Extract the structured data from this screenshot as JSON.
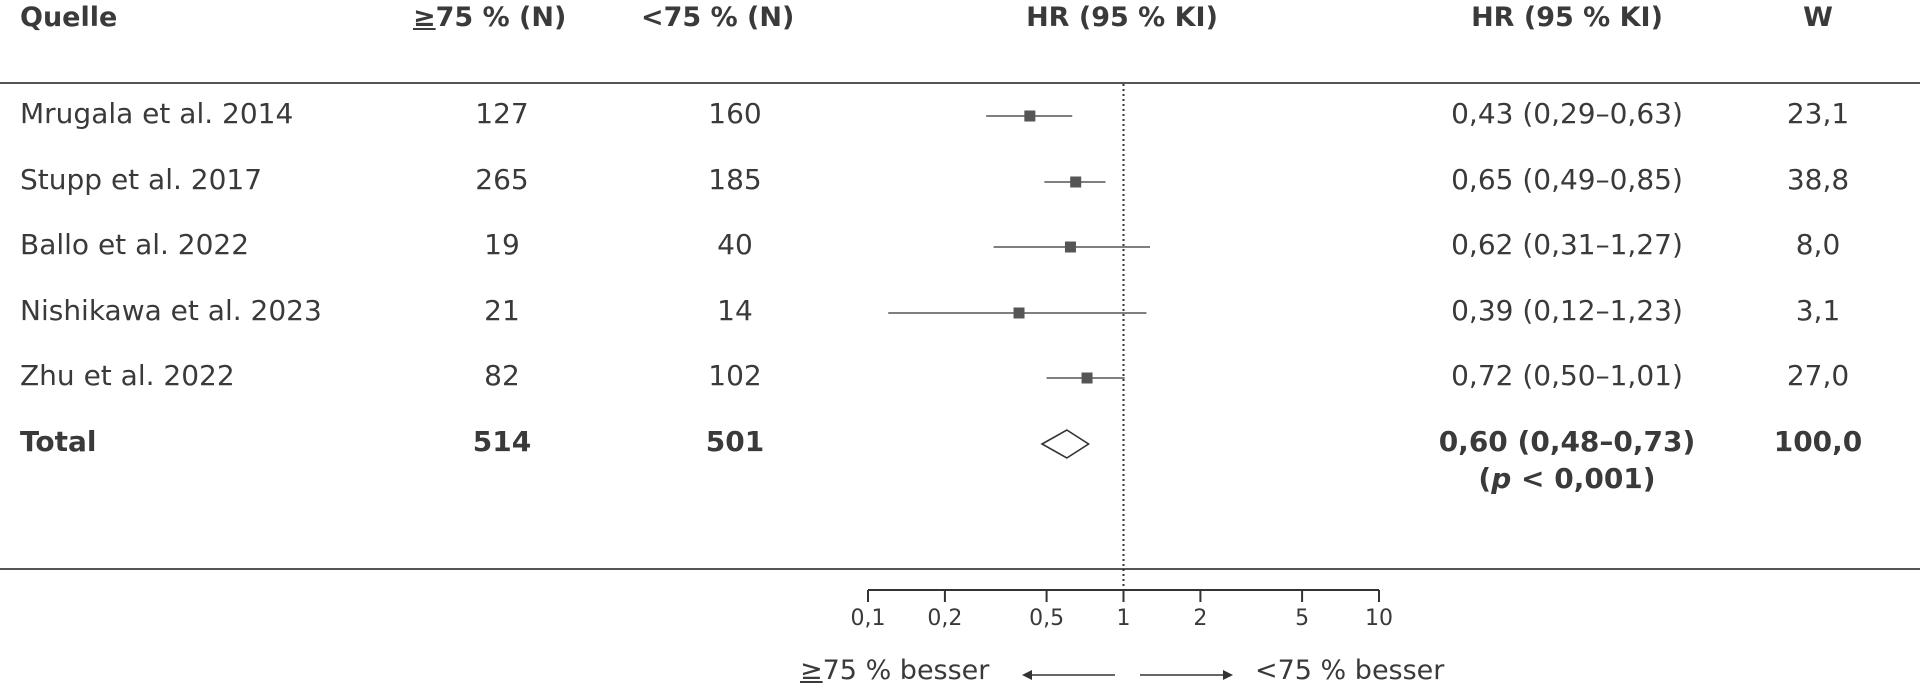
{
  "headers": {
    "source": "Quelle",
    "n_high_prefix": "≥",
    "n_high": "75 % (N)",
    "n_low": "<75 % (N)",
    "hr_plot": "HR (95 % KI)",
    "hr_value": "HR (95 % KI)",
    "weight": "W"
  },
  "rows": [
    {
      "source": "Mrugala et al. 2014",
      "n_high": "127",
      "n_low": "160",
      "hr_text": "0,43 (0,29–0,63)",
      "weight": "23,1"
    },
    {
      "source": "Stupp et al. 2017",
      "n_high": "265",
      "n_low": "185",
      "hr_text": "0,65 (0,49–0,85)",
      "weight": "38,8"
    },
    {
      "source": "Ballo et al. 2022",
      "n_high": "19",
      "n_low": "40",
      "hr_text": "0,62 (0,31–1,27)",
      "weight": "8,0"
    },
    {
      "source": "Nishikawa et al. 2023",
      "n_high": "21",
      "n_low": "14",
      "hr_text": "0,39 (0,12–1,23)",
      "weight": "3,1"
    },
    {
      "source": "Zhu et al. 2022",
      "n_high": "82",
      "n_low": "102",
      "hr_text": "0,72 (0,50–1,01)",
      "weight": "27,0"
    }
  ],
  "total": {
    "source": "Total",
    "n_high": "514",
    "n_low": "501",
    "hr_text": "0,60 (0,48–0,73)",
    "p_open": "(",
    "p_letter": "p",
    "p_rest": " < 0,001)",
    "weight": "100,0"
  },
  "axis": {
    "ticks": [
      "0,1",
      "0,2",
      "0,5",
      "1",
      "2",
      "5",
      "10"
    ],
    "left_prefix": "≥",
    "left_label": "75 % besser",
    "right_label": "<75 % besser"
  },
  "colors": {
    "text": "#3a3a3a",
    "marker": "#555555",
    "line": "#555555"
  },
  "chart_data": {
    "type": "scatter",
    "subtype": "forest-plot",
    "scale": "log",
    "xlim": [
      0.1,
      10
    ],
    "reference_line": 1,
    "ticks": [
      0.1,
      0.2,
      0.5,
      1,
      2,
      5,
      10
    ],
    "studies": [
      {
        "name": "Mrugala et al. 2014",
        "hr": 0.43,
        "lo": 0.29,
        "hi": 0.63,
        "weight": 23.1
      },
      {
        "name": "Stupp et al. 2017",
        "hr": 0.65,
        "lo": 0.49,
        "hi": 0.85,
        "weight": 38.8
      },
      {
        "name": "Ballo et al. 2022",
        "hr": 0.62,
        "lo": 0.31,
        "hi": 1.27,
        "weight": 8.0
      },
      {
        "name": "Nishikawa et al. 2023",
        "hr": 0.39,
        "lo": 0.12,
        "hi": 1.23,
        "weight": 3.1
      },
      {
        "name": "Zhu et al. 2022",
        "hr": 0.72,
        "lo": 0.5,
        "hi": 1.01,
        "weight": 27.0
      }
    ],
    "pooled": {
      "name": "Total",
      "hr": 0.6,
      "lo": 0.48,
      "hi": 0.73,
      "p": "< 0,001"
    }
  }
}
